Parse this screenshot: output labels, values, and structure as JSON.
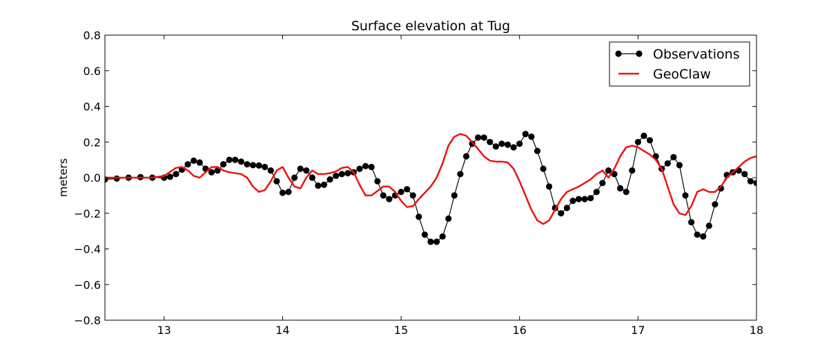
{
  "chart_data": {
    "type": "line",
    "title": "Surface elevation at Tug",
    "xlabel": "",
    "ylabel": "meters",
    "xlim": [
      12.5,
      18
    ],
    "ylim": [
      -0.8,
      0.8
    ],
    "x_ticks": [
      13,
      14,
      15,
      16,
      17,
      18
    ],
    "y_ticks": [
      -0.8,
      -0.6,
      -0.4,
      -0.2,
      0.0,
      0.2,
      0.4,
      0.6,
      0.8
    ],
    "x_tick_labels": [
      "13",
      "14",
      "15",
      "16",
      "17",
      "18"
    ],
    "y_tick_labels": [
      "−0.8",
      "−0.6",
      "−0.4",
      "−0.2",
      "0.0",
      "0.2",
      "0.4",
      "0.6",
      "0.8"
    ],
    "grid": false,
    "legend_position": "top-right",
    "series": [
      {
        "name": "Observations",
        "color": "#000000",
        "style": "line-with-markers",
        "points": [
          [
            12.5,
            -0.01
          ],
          [
            12.6,
            -0.005
          ],
          [
            12.7,
            0.0
          ],
          [
            12.8,
            0.003
          ],
          [
            12.9,
            0.0
          ],
          [
            13.0,
            0.0
          ],
          [
            13.05,
            0.005
          ],
          [
            13.1,
            0.02
          ],
          [
            13.15,
            0.045
          ],
          [
            13.2,
            0.075
          ],
          [
            13.25,
            0.095
          ],
          [
            13.3,
            0.085
          ],
          [
            13.35,
            0.05
          ],
          [
            13.4,
            0.03
          ],
          [
            13.45,
            0.04
          ],
          [
            13.5,
            0.075
          ],
          [
            13.55,
            0.1
          ],
          [
            13.6,
            0.1
          ],
          [
            13.65,
            0.09
          ],
          [
            13.7,
            0.075
          ],
          [
            13.75,
            0.07
          ],
          [
            13.8,
            0.068
          ],
          [
            13.85,
            0.06
          ],
          [
            13.9,
            0.04
          ],
          [
            13.95,
            -0.02
          ],
          [
            14.0,
            -0.085
          ],
          [
            14.05,
            -0.08
          ],
          [
            14.1,
            0.0
          ],
          [
            14.15,
            0.05
          ],
          [
            14.2,
            0.04
          ],
          [
            14.25,
            0.0
          ],
          [
            14.3,
            -0.045
          ],
          [
            14.35,
            -0.04
          ],
          [
            14.4,
            -0.01
          ],
          [
            14.45,
            0.01
          ],
          [
            14.5,
            0.02
          ],
          [
            14.55,
            0.025
          ],
          [
            14.6,
            0.03
          ],
          [
            14.65,
            0.05
          ],
          [
            14.7,
            0.065
          ],
          [
            14.75,
            0.06
          ],
          [
            14.8,
            -0.02
          ],
          [
            14.85,
            -0.1
          ],
          [
            14.9,
            -0.12
          ],
          [
            14.95,
            -0.1
          ],
          [
            15.0,
            -0.08
          ],
          [
            15.05,
            -0.065
          ],
          [
            15.1,
            -0.1
          ],
          [
            15.15,
            -0.22
          ],
          [
            15.2,
            -0.32
          ],
          [
            15.25,
            -0.36
          ],
          [
            15.3,
            -0.36
          ],
          [
            15.35,
            -0.33
          ],
          [
            15.4,
            -0.23
          ],
          [
            15.45,
            -0.1
          ],
          [
            15.5,
            0.02
          ],
          [
            15.55,
            0.12
          ],
          [
            15.6,
            0.19
          ],
          [
            15.65,
            0.225
          ],
          [
            15.7,
            0.225
          ],
          [
            15.75,
            0.2
          ],
          [
            15.8,
            0.175
          ],
          [
            15.85,
            0.19
          ],
          [
            15.9,
            0.185
          ],
          [
            15.95,
            0.17
          ],
          [
            16.0,
            0.19
          ],
          [
            16.05,
            0.245
          ],
          [
            16.1,
            0.23
          ],
          [
            16.15,
            0.15
          ],
          [
            16.2,
            0.05
          ],
          [
            16.25,
            -0.05
          ],
          [
            16.3,
            -0.17
          ],
          [
            16.35,
            -0.2
          ],
          [
            16.4,
            -0.17
          ],
          [
            16.45,
            -0.13
          ],
          [
            16.5,
            -0.12
          ],
          [
            16.55,
            -0.12
          ],
          [
            16.6,
            -0.115
          ],
          [
            16.65,
            -0.08
          ],
          [
            16.7,
            -0.03
          ],
          [
            16.75,
            0.04
          ],
          [
            16.8,
            0.02
          ],
          [
            16.85,
            -0.06
          ],
          [
            16.9,
            -0.08
          ],
          [
            16.95,
            0.04
          ],
          [
            17.0,
            0.2
          ],
          [
            17.05,
            0.235
          ],
          [
            17.1,
            0.21
          ],
          [
            17.15,
            0.12
          ],
          [
            17.2,
            0.05
          ],
          [
            17.25,
            0.08
          ],
          [
            17.3,
            0.115
          ],
          [
            17.35,
            0.07
          ],
          [
            17.4,
            -0.1
          ],
          [
            17.45,
            -0.25
          ],
          [
            17.5,
            -0.32
          ],
          [
            17.55,
            -0.33
          ],
          [
            17.6,
            -0.27
          ],
          [
            17.65,
            -0.15
          ],
          [
            17.7,
            -0.06
          ],
          [
            17.75,
            0.015
          ],
          [
            17.8,
            0.03
          ],
          [
            17.85,
            0.04
          ],
          [
            17.9,
            0.02
          ],
          [
            17.95,
            -0.02
          ],
          [
            18.0,
            -0.03
          ]
        ]
      },
      {
        "name": "GeoClaw",
        "color": "#ee1111",
        "style": "line",
        "points": [
          [
            12.5,
            0.0
          ],
          [
            12.7,
            0.0
          ],
          [
            12.9,
            0.0
          ],
          [
            13.0,
            0.01
          ],
          [
            13.1,
            0.055
          ],
          [
            13.15,
            0.06
          ],
          [
            13.2,
            0.04
          ],
          [
            13.25,
            0.01
          ],
          [
            13.3,
            0.0
          ],
          [
            13.35,
            0.03
          ],
          [
            13.4,
            0.06
          ],
          [
            13.45,
            0.06
          ],
          [
            13.5,
            0.04
          ],
          [
            13.55,
            0.03
          ],
          [
            13.65,
            0.02
          ],
          [
            13.7,
            0.0
          ],
          [
            13.75,
            -0.05
          ],
          [
            13.8,
            -0.08
          ],
          [
            13.85,
            -0.07
          ],
          [
            13.9,
            -0.02
          ],
          [
            13.95,
            0.04
          ],
          [
            14.0,
            0.06
          ],
          [
            14.05,
            0.0
          ],
          [
            14.1,
            -0.05
          ],
          [
            14.15,
            -0.06
          ],
          [
            14.2,
            0.0
          ],
          [
            14.25,
            0.04
          ],
          [
            14.3,
            0.02
          ],
          [
            14.35,
            0.02
          ],
          [
            14.4,
            0.025
          ],
          [
            14.45,
            0.035
          ],
          [
            14.5,
            0.055
          ],
          [
            14.55,
            0.06
          ],
          [
            14.6,
            0.03
          ],
          [
            14.65,
            -0.04
          ],
          [
            14.7,
            -0.1
          ],
          [
            14.75,
            -0.1
          ],
          [
            14.8,
            -0.075
          ],
          [
            14.85,
            -0.05
          ],
          [
            14.9,
            -0.05
          ],
          [
            14.95,
            -0.08
          ],
          [
            15.0,
            -0.13
          ],
          [
            15.05,
            -0.165
          ],
          [
            15.1,
            -0.16
          ],
          [
            15.15,
            -0.12
          ],
          [
            15.25,
            -0.05
          ],
          [
            15.3,
            0.0
          ],
          [
            15.35,
            0.08
          ],
          [
            15.4,
            0.18
          ],
          [
            15.45,
            0.23
          ],
          [
            15.5,
            0.245
          ],
          [
            15.55,
            0.235
          ],
          [
            15.6,
            0.2
          ],
          [
            15.65,
            0.16
          ],
          [
            15.7,
            0.12
          ],
          [
            15.75,
            0.095
          ],
          [
            15.8,
            0.09
          ],
          [
            15.85,
            0.09
          ],
          [
            15.9,
            0.085
          ],
          [
            15.95,
            0.05
          ],
          [
            16.0,
            -0.02
          ],
          [
            16.05,
            -0.1
          ],
          [
            16.1,
            -0.18
          ],
          [
            16.15,
            -0.24
          ],
          [
            16.2,
            -0.26
          ],
          [
            16.25,
            -0.24
          ],
          [
            16.3,
            -0.18
          ],
          [
            16.35,
            -0.12
          ],
          [
            16.4,
            -0.08
          ],
          [
            16.5,
            -0.05
          ],
          [
            16.6,
            -0.01
          ],
          [
            16.65,
            0.02
          ],
          [
            16.7,
            0.04
          ],
          [
            16.75,
            0.0
          ],
          [
            16.8,
            0.05
          ],
          [
            16.85,
            0.12
          ],
          [
            16.9,
            0.17
          ],
          [
            16.95,
            0.18
          ],
          [
            17.0,
            0.17
          ],
          [
            17.05,
            0.15
          ],
          [
            17.1,
            0.13
          ],
          [
            17.15,
            0.1
          ],
          [
            17.2,
            0.05
          ],
          [
            17.25,
            -0.05
          ],
          [
            17.3,
            -0.15
          ],
          [
            17.35,
            -0.2
          ],
          [
            17.4,
            -0.21
          ],
          [
            17.45,
            -0.16
          ],
          [
            17.5,
            -0.08
          ],
          [
            17.55,
            -0.065
          ],
          [
            17.6,
            -0.08
          ],
          [
            17.65,
            -0.08
          ],
          [
            17.7,
            -0.05
          ],
          [
            17.75,
            0.0
          ],
          [
            17.8,
            0.03
          ],
          [
            17.85,
            0.06
          ],
          [
            17.9,
            0.09
          ],
          [
            17.95,
            0.11
          ],
          [
            18.0,
            0.12
          ]
        ]
      }
    ]
  }
}
